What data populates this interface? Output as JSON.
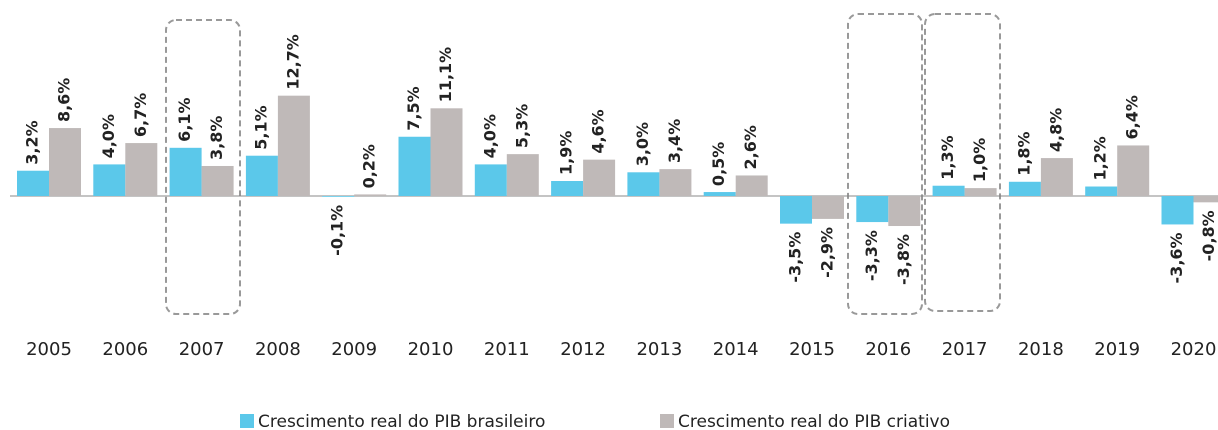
{
  "chart_data": {
    "type": "bar",
    "categories": [
      "2005",
      "2006",
      "2007",
      "2008",
      "2009",
      "2010",
      "2011",
      "2012",
      "2013",
      "2014",
      "2015",
      "2016",
      "2017",
      "2018",
      "2019",
      "2020"
    ],
    "series": [
      {
        "name": "Crescimento real do PIB brasileiro",
        "color": "#5bc8ea",
        "values": [
          3.2,
          4.0,
          6.1,
          5.1,
          -0.1,
          7.5,
          4.0,
          1.9,
          3.0,
          0.5,
          -3.5,
          -3.3,
          1.3,
          1.8,
          1.2,
          -3.6
        ],
        "value_labels": [
          "3,2%",
          "4,0%",
          "6,1%",
          "5,1%",
          "-0,1%",
          "7,5%",
          "4,0%",
          "1,9%",
          "3,0%",
          "0,5%",
          "-3,5%",
          "-3,3%",
          "1,3%",
          "1,8%",
          "1,2%",
          "-3,6%"
        ]
      },
      {
        "name": "Crescimento real do PIB criativo",
        "color": "#bfb9b8",
        "values": [
          8.6,
          6.7,
          3.8,
          12.7,
          0.2,
          11.1,
          5.3,
          4.6,
          3.4,
          2.6,
          -2.9,
          -3.8,
          1.0,
          4.8,
          6.4,
          -0.8
        ],
        "value_labels": [
          "8,6%",
          "6,7%",
          "3,8%",
          "12,7%",
          "0,2%",
          "11,1%",
          "5,3%",
          "4,6%",
          "3,4%",
          "2,6%",
          "-2,9%",
          "-3,8%",
          "1,0%",
          "4,8%",
          "6,4%",
          "-0,8%"
        ]
      }
    ],
    "legend": "bottom"
  }
}
